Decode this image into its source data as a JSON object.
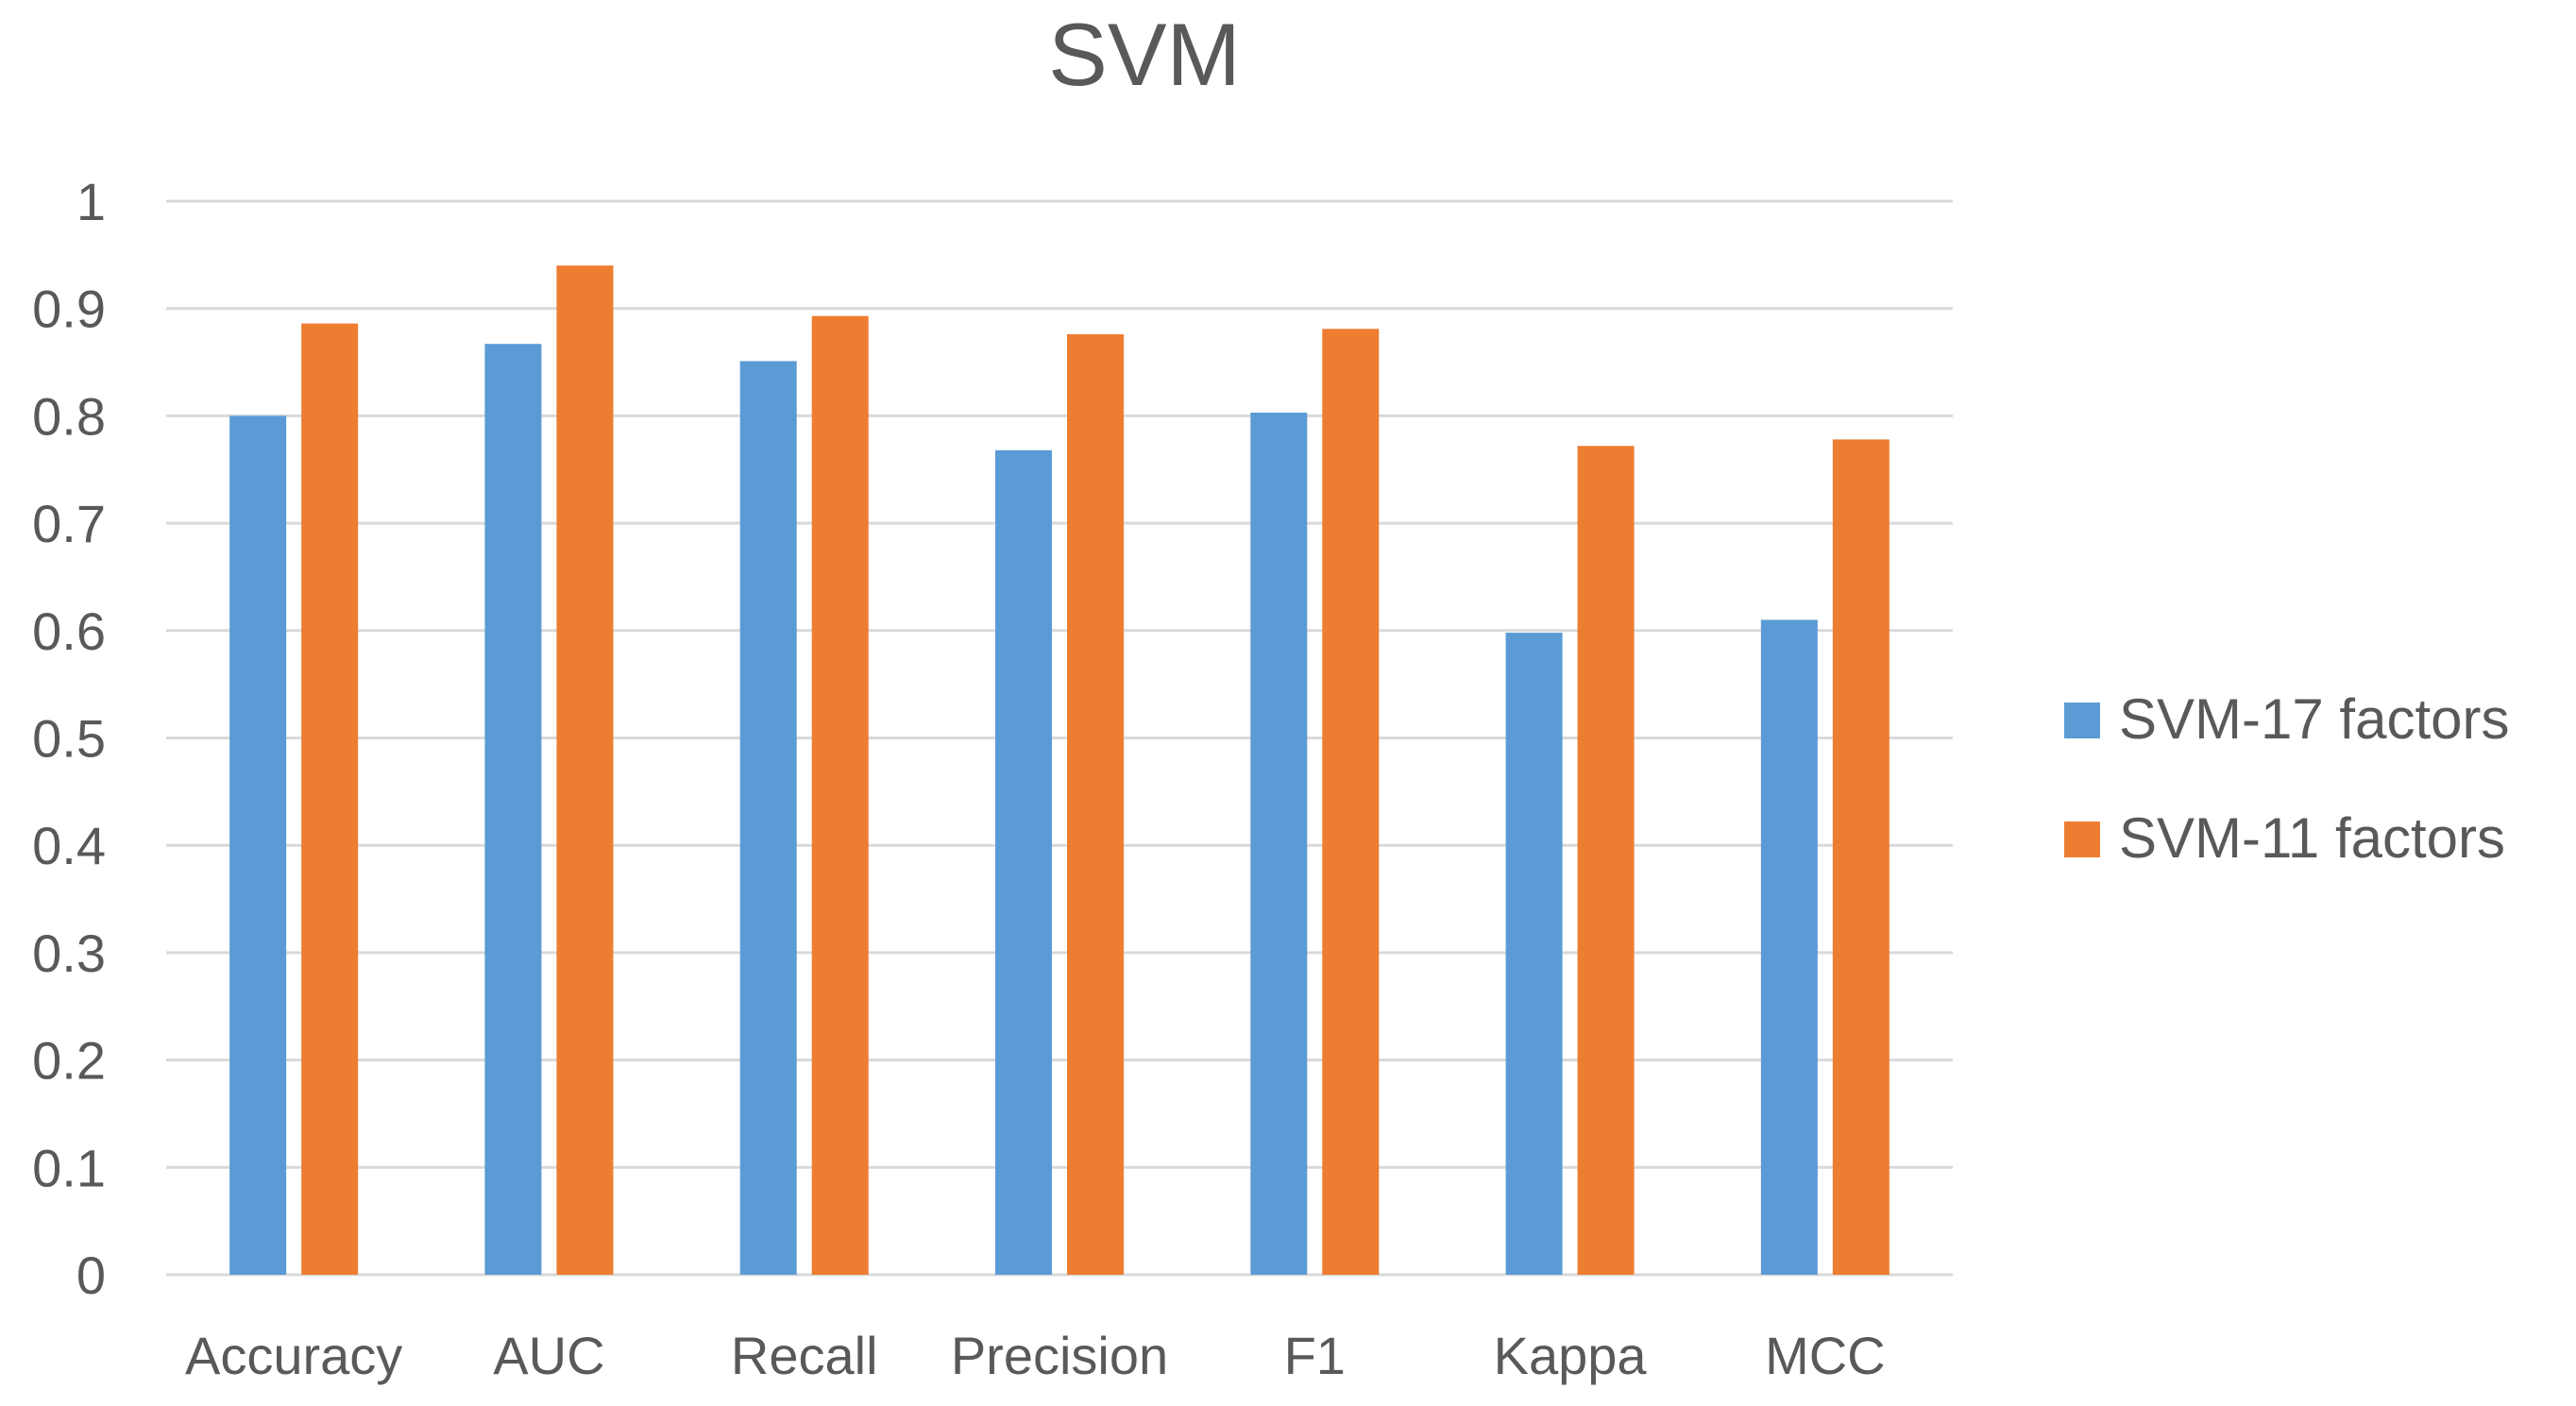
{
  "chart_data": {
    "type": "bar",
    "title": "SVM",
    "xlabel": "",
    "ylabel": "",
    "categories": [
      "Accuracy",
      "AUC",
      "Recall",
      "Precision",
      "F1",
      "Kappa",
      "MCC"
    ],
    "series": [
      {
        "name": "SVM-17 factors",
        "color": "#5B9BD5",
        "values": [
          0.8,
          0.867,
          0.851,
          0.768,
          0.803,
          0.598,
          0.61
        ]
      },
      {
        "name": "SVM-11 factors",
        "color": "#ED7D31",
        "values": [
          0.886,
          0.94,
          0.893,
          0.876,
          0.881,
          0.772,
          0.778
        ]
      }
    ],
    "ylim": [
      0,
      1
    ],
    "yticks": [
      "0",
      "0.1",
      "0.2",
      "0.3",
      "0.4",
      "0.5",
      "0.6",
      "0.7",
      "0.8",
      "0.9",
      "1"
    ],
    "grid": true,
    "gridColor": "#D9D9D9",
    "legend_position": "right"
  }
}
